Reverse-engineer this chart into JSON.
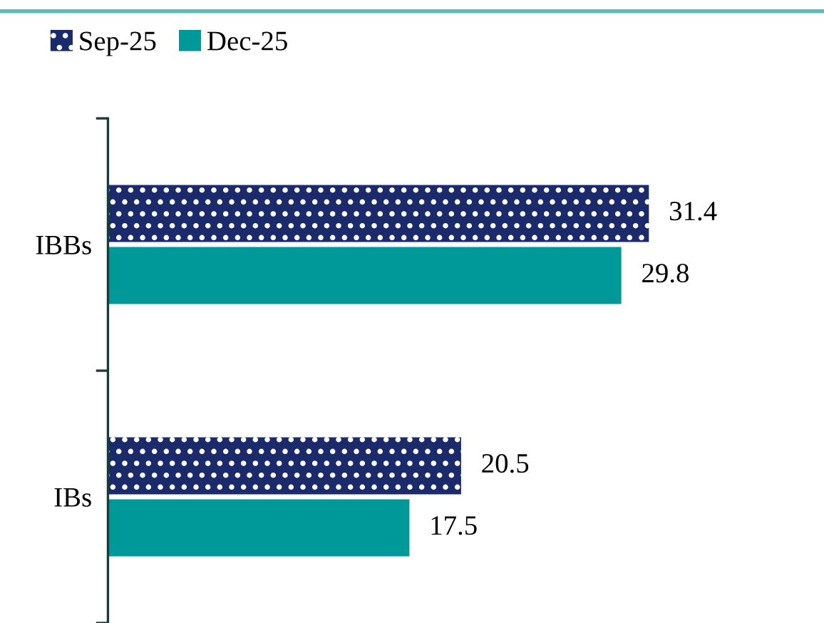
{
  "chart_data": {
    "type": "bar",
    "orientation": "horizontal",
    "categories": [
      "IBBs",
      "IBs"
    ],
    "series": [
      {
        "name": "Sep-25",
        "color": "#1b2a6b",
        "values": [
          31.4,
          20.5
        ]
      },
      {
        "name": "Dec-25",
        "color": "#009999",
        "values": [
          29.8,
          17.5
        ]
      }
    ],
    "tick_labels": "y",
    "data_labels": true,
    "legend": "top left",
    "grid": false
  }
}
